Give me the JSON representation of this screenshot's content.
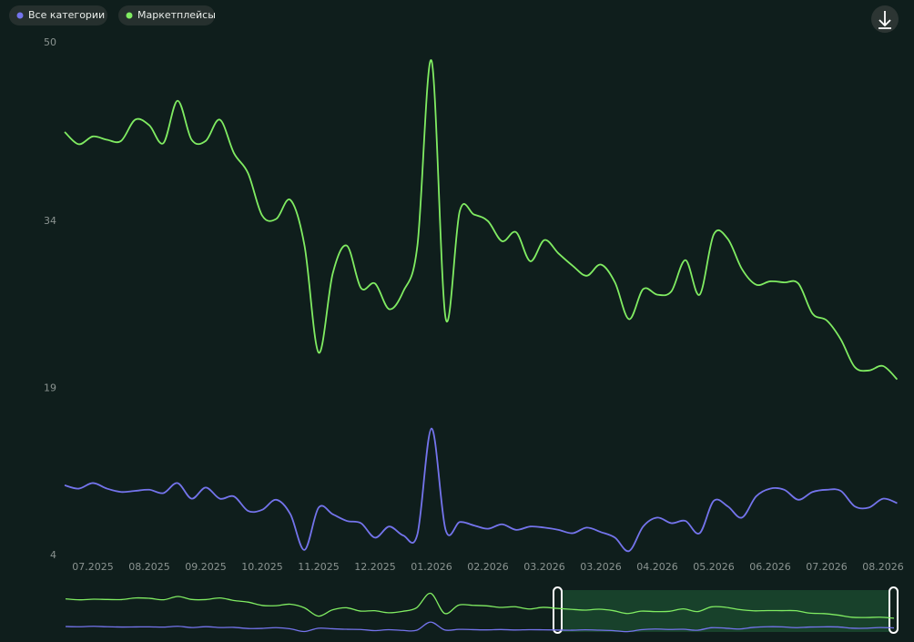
{
  "chart_data": {
    "type": "line",
    "categories": [
      null,
      null,
      "07.2025",
      null,
      null,
      null,
      "08.2025",
      null,
      null,
      null,
      "09.2025",
      null,
      null,
      null,
      "10.2025",
      null,
      null,
      null,
      "11.2025",
      null,
      null,
      null,
      "12.2025",
      null,
      null,
      null,
      "01.2026",
      null,
      null,
      null,
      "02.2026",
      null,
      null,
      null,
      "03.2026",
      null,
      null,
      null,
      "03.2026",
      null,
      null,
      null,
      "04.2026",
      null,
      null,
      null,
      "05.2026",
      null,
      null,
      null,
      "06.2026",
      null,
      null,
      null,
      "07.2026",
      null,
      null,
      null,
      "08.2026",
      null
    ],
    "series": [
      {
        "name": "Все категории",
        "color": "#7474ec",
        "values": [
          10.3,
          10.0,
          10.5,
          10.0,
          9.7,
          9.8,
          9.9,
          9.6,
          10.5,
          9.1,
          10.1,
          9.1,
          9.3,
          8.0,
          8.1,
          9.0,
          7.7,
          4.5,
          8.3,
          7.7,
          7.1,
          6.9,
          5.6,
          6.6,
          5.8,
          5.9,
          15.4,
          6.3,
          7.0,
          6.7,
          6.4,
          6.8,
          6.3,
          6.6,
          6.5,
          6.3,
          6.0,
          6.5,
          6.1,
          5.6,
          4.4,
          6.6,
          7.4,
          6.9,
          7.1,
          6.0,
          8.9,
          8.4,
          7.4,
          9.3,
          10.0,
          9.9,
          9.0,
          9.7,
          9.9,
          9.8,
          8.4,
          8.3,
          9.1,
          8.7
        ]
      },
      {
        "name": "Маркетплейсы",
        "color": "#80ec62",
        "values": [
          42.0,
          40.9,
          41.6,
          41.3,
          41.2,
          43.1,
          42.6,
          41.0,
          44.8,
          41.3,
          41.2,
          43.1,
          40.1,
          38.3,
          34.5,
          34.2,
          35.9,
          31.8,
          22.2,
          29.3,
          31.8,
          28.0,
          28.4,
          26.1,
          27.7,
          31.8,
          48.4,
          25.3,
          34.9,
          34.6,
          34.0,
          32.2,
          33.0,
          30.4,
          32.3,
          31.1,
          30.0,
          29.1,
          30.1,
          28.5,
          25.2,
          27.9,
          27.4,
          27.7,
          30.5,
          27.4,
          32.8,
          32.4,
          29.7,
          28.3,
          28.6,
          28.5,
          28.4,
          25.7,
          25.1,
          23.4,
          20.9,
          20.6,
          21.0,
          19.8
        ]
      }
    ],
    "ylim": [
      4,
      50
    ],
    "yticks": [
      4,
      19,
      34,
      50
    ]
  }
}
